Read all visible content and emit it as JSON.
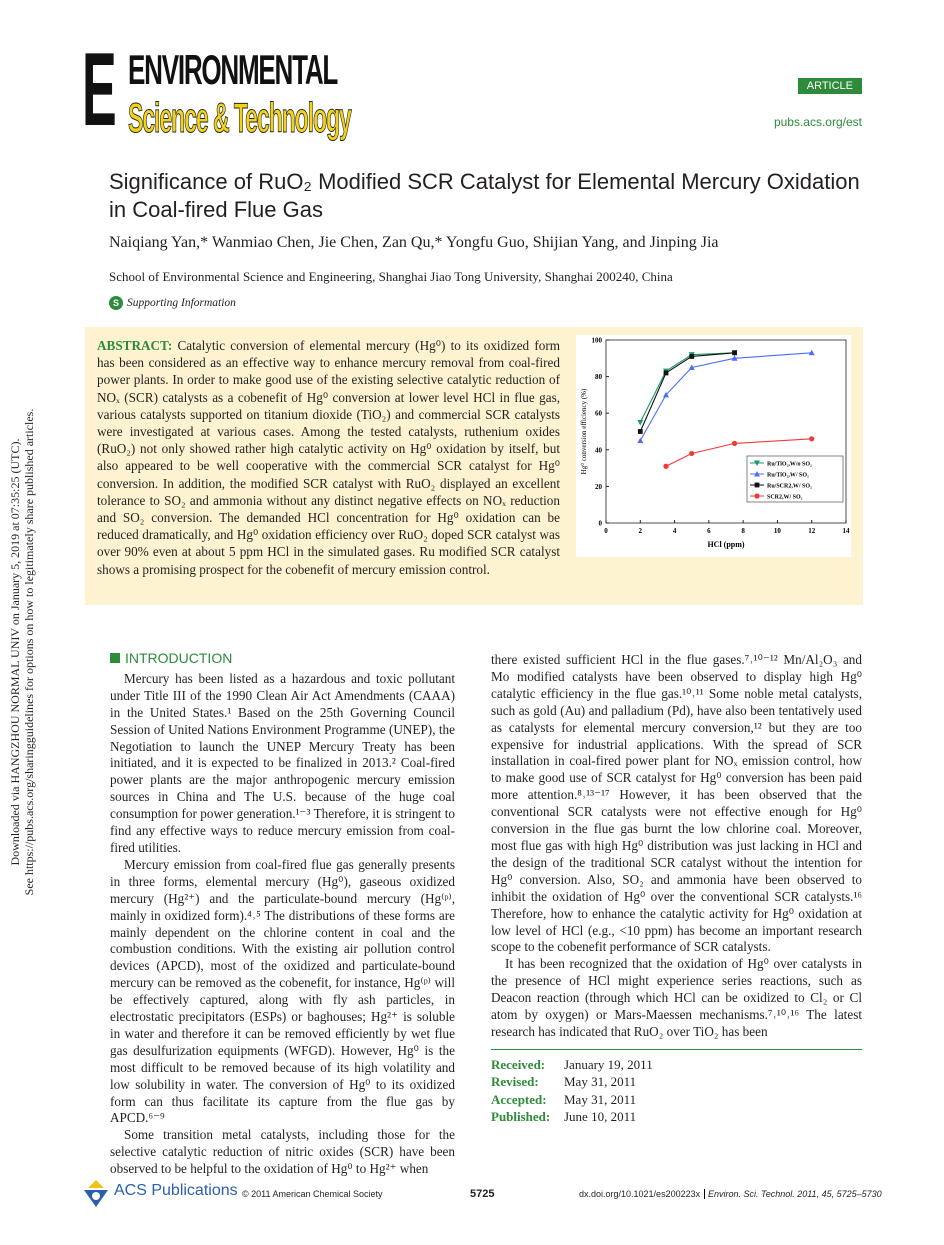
{
  "journal": {
    "logo_line1": "ENVIRONMENTAL",
    "logo_line2": "Science & Technology",
    "badge": "ARTICLE",
    "url": "pubs.acs.org/est"
  },
  "article": {
    "title": "Significance of RuO₂ Modified SCR Catalyst for Elemental Mercury Oxidation in Coal-fired Flue Gas",
    "authors": "Naiqiang Yan,* Wanmiao Chen, Jie Chen, Zan Qu,* Yongfu Guo, Shijian Yang, and Jinping Jia",
    "affiliation": "School of Environmental Science and Engineering, Shanghai Jiao Tong University, Shanghai 200240, China",
    "supporting_icon": "S",
    "supporting": "Supporting Information"
  },
  "abstract": {
    "heading": "ABSTRACT:",
    "text_a": "Catalytic conversion of elemental mercury (Hg⁰) to its oxidized form has been considered as an effective way to enhance mercury removal from coal-fired power plants. In order to make good use of the existing selective catalytic reduction of NOₓ (SCR) catalysts as a cobenefit of Hg⁰ conversion at lower level HCl in flue gas, various catalysts supported on titanium dioxide (TiO₂) and commercial SCR catalysts were investigated at various cases. Among the tested catalysts, ruthenium oxides (RuO₂) not only showed rather high catalytic activity on Hg⁰ oxidation by itself, but also appeared to be well cooperative with the commercial SCR catalyst for Hg⁰ conversion. In addition, the modified SCR catalyst with RuO₂ displayed an excellent tolerance to SO₂ and ammonia without any distinct negative effects on NOₓ reduction and SO₂ conversion. The demanded HCl concentration for Hg⁰ oxidation can be reduced dramatically, and Hg⁰ oxidation efficiency over RuO₂ doped SCR catalyst was",
    "text_b": "over 90% even at about 5 ppm HCl in the simulated gases. Ru modified SCR catalyst shows a promising prospect for the cobenefit of mercury emission control."
  },
  "chart_data": {
    "type": "line",
    "xlabel": "HCl (ppm)",
    "ylabel": "Hg⁰ conversion efficiency (%)",
    "xlim": [
      0,
      14
    ],
    "ylim": [
      0,
      100
    ],
    "xticks": [
      0,
      2,
      4,
      6,
      8,
      10,
      12,
      14
    ],
    "yticks": [
      0,
      20,
      40,
      60,
      80,
      100
    ],
    "grid": false,
    "legend": "bottom-right",
    "series": [
      {
        "name": "Ru/TiO₂,W/o SO₂",
        "color": "#1a9a6a",
        "marker": "triangle-down",
        "x": [
          2,
          3.5,
          5,
          7.5
        ],
        "y": [
          55,
          83,
          92,
          93
        ]
      },
      {
        "name": "Ru/TiO₂,W/ SO₂",
        "color": "#4d6cf5",
        "marker": "triangle-up",
        "x": [
          2,
          3.5,
          5,
          7.5,
          12
        ],
        "y": [
          45,
          70,
          85,
          90,
          93
        ]
      },
      {
        "name": "Ru/SCR2,W/ SO₂",
        "color": "#111111",
        "marker": "square",
        "x": [
          2,
          3.5,
          5,
          7.5
        ],
        "y": [
          50,
          82,
          91,
          93
        ]
      },
      {
        "name": "SCR2,W/ SO₂",
        "color": "#f03a3a",
        "marker": "circle",
        "x": [
          3.5,
          5,
          7.5,
          12
        ],
        "y": [
          31,
          38,
          43.5,
          46
        ]
      }
    ]
  },
  "side_note": {
    "line1": "Downloaded via HANGZHOU NORMAL UNIV on January 5, 2019 at 07:35:25 (UTC).",
    "line2": "See https://pubs.acs.org/sharingguidelines for options on how to legitimately share published articles."
  },
  "intro": {
    "heading": "INTRODUCTION",
    "left": [
      "Mercury has been listed as a hazardous and toxic pollutant under Title III of the 1990 Clean Air Act Amendments (CAAA) in the United States.¹ Based on the 25th Governing Council Session of United Nations Environment Programme (UNEP), the Negotiation to launch the UNEP Mercury Treaty has been initiated, and it is expected to be finalized in 2013.² Coal-fired power plants are the major anthropogenic mercury emission sources in China and The U.S. because of the huge coal consumption for power generation.¹⁻³ Therefore, it is stringent to find any effective ways to reduce mercury emission from coal-fired utilities.",
      "Mercury emission from coal-fired flue gas generally presents in three forms, elemental mercury (Hg⁰), gaseous oxidized mercury (Hg²⁺) and the particulate-bound mercury (Hg⁽ᵖ⁾, mainly in oxidized form).⁴˒⁵ The distributions of these forms are mainly dependent on the chlorine content in coal and the combustion conditions. With the existing air pollution control devices (APCD), most of the oxidized and particulate-bound mercury can be removed as the cobenefit, for instance, Hg⁽ᵖ⁾ will be effectively captured, along with fly ash particles, in electrostatic precipitators (ESPs) or baghouses; Hg²⁺ is soluble in water and therefore it can be removed efficiently by wet flue gas desulfurization equipments (WFGD). However, Hg⁰ is the most difficult to be removed because of its high volatility and low solubility in water. The conversion of Hg⁰ to its oxidized form can thus facilitate its capture from the flue gas by APCD.⁶⁻⁹",
      "Some transition metal catalysts, including those for the selective catalytic reduction of nitric oxides (SCR) have been observed to be helpful to the oxidation of Hg⁰ to Hg²⁺ when"
    ],
    "right": [
      "there existed sufficient HCl in the flue gases.⁷˒¹⁰⁻¹² Mn/Al₂O₃ and Mo modified catalysts have been observed to display high Hg⁰ catalytic efficiency in the flue gas.¹⁰˒¹¹ Some noble metal catalysts, such as gold (Au) and palladium (Pd), have also been tentatively used as catalysts for elemental mercury conversion,¹² but they are too expensive for industrial applications. With the spread of SCR installation in coal-fired power plant for NOₓ emission control, how to make good use of SCR catalyst for Hg⁰ conversion has been paid more attention.⁸˒¹³⁻¹⁷ However, it has been observed that the conventional SCR catalysts were not effective enough for Hg⁰ conversion in the flue gas burnt the low chlorine coal. Moreover, most flue gas with high Hg⁰ distribution was just lacking in HCl and the design of the traditional SCR catalyst without the intention for Hg⁰ conversion. Also, SO₂ and ammonia have been observed to inhibit the oxidation of Hg⁰ over the conventional SCR catalysts.¹⁶ Therefore, how to enhance the catalytic activity for Hg⁰ oxidation at low level of HCl (e.g., <10 ppm) has become an important research scope to the cobenefit performance of SCR catalysts.",
      "It has been recognized that the oxidation of Hg⁰ over catalysts in the presence of HCl might experience series reactions, such as Deacon reaction (through which HCl can be oxidized to Cl₂ or Cl atom by oxygen) or Mars-Maessen mechanisms.⁷˒¹⁰˒¹⁶ The latest research has indicated that RuO₂ over TiO₂ has been"
    ]
  },
  "dates": [
    {
      "k": "Received:",
      "v": "January 19, 2011"
    },
    {
      "k": "Revised:",
      "v": "May 31, 2011"
    },
    {
      "k": "Accepted:",
      "v": "May 31, 2011"
    },
    {
      "k": "Published:",
      "v": "June 10, 2011"
    }
  ],
  "footer": {
    "publisher": "ACS Publications",
    "copyright": "© 2011 American Chemical Society",
    "page": "5725",
    "doi": "dx.doi.org/10.1021/es200223x",
    "citation": "Environ. Sci. Technol. 2011, 45, 5725–5730"
  }
}
